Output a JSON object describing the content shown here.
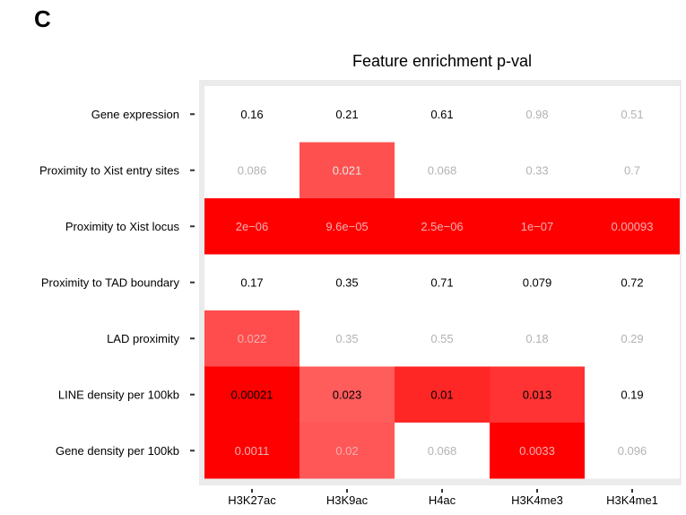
{
  "panel_letter": "C",
  "chart_data": {
    "type": "heatmap",
    "title": "Feature enrichment p-val",
    "columns": [
      "H3K27ac",
      "H3K9ac",
      "H4ac",
      "H3K4me3",
      "H3K4me1"
    ],
    "rows": [
      "Gene expression",
      "Proximity to Xist entry sites",
      "Proximity to Xist locus",
      "Proximity to TAD boundary",
      "LAD proximity",
      "LINE density per 100kb",
      "Gene density per 100kb"
    ],
    "labels": [
      [
        "0.16",
        "0.21",
        "0.61",
        "0.98",
        "0.51"
      ],
      [
        "0.086",
        "0.021",
        "0.068",
        "0.33",
        "0.7"
      ],
      [
        "2e−06",
        "9.6e−05",
        "2.5e−06",
        "1e−07",
        "0.00093"
      ],
      [
        "0.17",
        "0.35",
        "0.71",
        "0.079",
        "0.72"
      ],
      [
        "0.022",
        "0.35",
        "0.55",
        "0.18",
        "0.29"
      ],
      [
        "0.00021",
        "0.023",
        "0.01",
        "0.013",
        "0.19"
      ],
      [
        "0.0011",
        "0.02",
        "0.068",
        "0.0033",
        "0.096"
      ]
    ],
    "values": [
      [
        0.16,
        0.21,
        0.61,
        0.98,
        0.51
      ],
      [
        0.086,
        0.021,
        0.068,
        0.33,
        0.7
      ],
      [
        2e-06,
        9.6e-05,
        2.5e-06,
        1e-07,
        0.00093
      ],
      [
        0.17,
        0.35,
        0.71,
        0.079,
        0.72
      ],
      [
        0.022,
        0.35,
        0.55,
        0.18,
        0.29
      ],
      [
        0.00021,
        0.023,
        0.01,
        0.013,
        0.19
      ],
      [
        0.0011,
        0.02,
        0.068,
        0.0033,
        0.096
      ]
    ],
    "fill_colors": [
      [
        "#ffffff",
        "#ffffff",
        "#ffffff",
        "#ffffff",
        "#ffffff"
      ],
      [
        "#ffffff",
        "#ff5050",
        "#ffffff",
        "#ffffff",
        "#ffffff"
      ],
      [
        "#ff0000",
        "#ff0000",
        "#ff0000",
        "#ff0000",
        "#ff0000"
      ],
      [
        "#ffffff",
        "#ffffff",
        "#ffffff",
        "#ffffff",
        "#ffffff"
      ],
      [
        "#ff4d4d",
        "#ffffff",
        "#ffffff",
        "#ffffff",
        "#ffffff"
      ],
      [
        "#ff0000",
        "#ff5c5c",
        "#ff2626",
        "#ff3333",
        "#ffffff"
      ],
      [
        "#ff0000",
        "#ff5757",
        "#ffffff",
        "#ff0000",
        "#ffffff"
      ]
    ],
    "text_colors": [
      [
        "#000000",
        "#000000",
        "#000000",
        "#b3b3b3",
        "#b3b3b3"
      ],
      [
        "#b3b3b3",
        "#e6e6e6",
        "#b3b3b3",
        "#b3b3b3",
        "#b3b3b3"
      ],
      [
        "#f0b0b0",
        "#f0b0b0",
        "#f0b0b0",
        "#f0b0b0",
        "#f0b0b0"
      ],
      [
        "#000000",
        "#000000",
        "#000000",
        "#000000",
        "#000000"
      ],
      [
        "#f0b0b0",
        "#b3b3b3",
        "#b3b3b3",
        "#b3b3b3",
        "#b3b3b3"
      ],
      [
        "#000000",
        "#000000",
        "#000000",
        "#000000",
        "#000000"
      ],
      [
        "#f0b0b0",
        "#f0b0b0",
        "#b3b3b3",
        "#f0b0b0",
        "#b3b3b3"
      ]
    ],
    "panel_background": "#ebebeb",
    "grid": true,
    "legend": "none"
  }
}
